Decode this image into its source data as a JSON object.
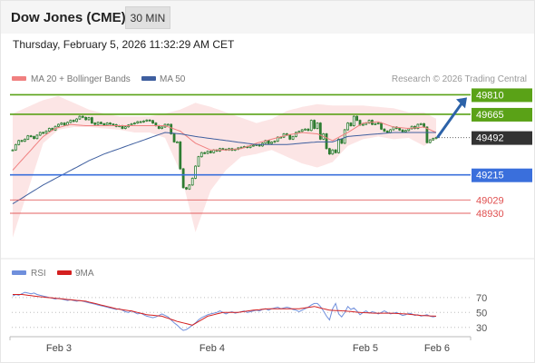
{
  "header": {
    "title": "Dow Jones (CME)",
    "interval": "30 MIN"
  },
  "timestamp": "Thursday, February 5, 2026 11:32:29 AM CET",
  "legend": {
    "ma20": "MA 20 + Bollinger Bands",
    "ma50": "MA 50",
    "credit": "Research © 2026 Trading Central",
    "rsi": "RSI",
    "ma9": "9MA"
  },
  "colors": {
    "candle": "#2e7d32",
    "ma20": "#f08080",
    "bollinger_fill": "#fbdcdc",
    "ma50": "#3f5f9f",
    "resistance": "#5aa217",
    "pivot": "#3a6fdc",
    "support": "#e05050",
    "last_price": "#333333",
    "rsi_line": "#6f8fdc",
    "rsi_ma": "#d42020"
  },
  "chart_data": [
    {
      "type": "candlestick",
      "title": "Dow Jones (CME)",
      "xlabel": "",
      "ylabel": "",
      "x_ticks": [
        "Feb 3",
        "Feb 4",
        "Feb 5",
        "Feb 6"
      ],
      "ylim": [
        48620,
        49860
      ],
      "grid": false,
      "legend_position": "top-left",
      "levels": [
        {
          "value": 49810,
          "label": "49810",
          "kind": "resistance"
        },
        {
          "value": 49665,
          "label": "49665",
          "kind": "resistance"
        },
        {
          "value": 49492,
          "label": "49492",
          "kind": "last"
        },
        {
          "value": 49215,
          "label": "49215",
          "kind": "pivot"
        },
        {
          "value": 49029,
          "label": "49029",
          "kind": "support"
        },
        {
          "value": 48930,
          "label": "48930",
          "kind": "support"
        }
      ],
      "close": [
        49400,
        49440,
        49470,
        49465,
        49480,
        49505,
        49500,
        49485,
        49510,
        49530,
        49525,
        49540,
        49560,
        49548,
        49575,
        49590,
        49600,
        49585,
        49605,
        49620,
        49612,
        49630,
        49650,
        49642,
        49625,
        49640,
        49600,
        49590,
        49605,
        49595,
        49585,
        49600,
        49592,
        49588,
        49575,
        49580,
        49560,
        49572,
        49585,
        49594,
        49600,
        49610,
        49608,
        49615,
        49622,
        49618,
        49600,
        49580,
        49560,
        49570,
        49590,
        49590,
        49520,
        49460,
        49460,
        49260,
        49120,
        49110,
        49140,
        49190,
        49280,
        49350,
        49380,
        49375,
        49390,
        49380,
        49400,
        49392,
        49410,
        49405,
        49400,
        49410,
        49398,
        49405,
        49415,
        49420,
        49425,
        49418,
        49430,
        49435,
        49440,
        49430,
        49450,
        49470,
        49448,
        49458,
        49465,
        49495,
        49495,
        49520,
        49510,
        49480,
        49500,
        49530,
        49538,
        49550,
        49555,
        49545,
        49620,
        49560,
        49600,
        49480,
        49520,
        49410,
        49370,
        49400,
        49380,
        49480,
        49450,
        49550,
        49600,
        49580,
        49650,
        49620,
        49585,
        49590,
        49600,
        49620,
        49590,
        49595,
        49600,
        49555,
        49540,
        49530,
        49550,
        49570,
        49560,
        49548,
        49535,
        49545,
        49558,
        49575,
        49560,
        49590,
        49595,
        49570,
        49455,
        49475,
        49485,
        49492
      ],
      "series": [
        {
          "name": "MA 20",
          "values": [
            49250,
            49275,
            49300,
            49325,
            49350,
            49375,
            49400,
            49425,
            49450,
            49475,
            49500,
            49515,
            49530,
            49545,
            49560,
            49566,
            49572,
            49578,
            49584,
            49590,
            49588,
            49586,
            49584,
            49582,
            49580,
            49580,
            49580,
            49580,
            49580,
            49580,
            49580,
            49580,
            49580,
            49580,
            49580,
            49580,
            49580,
            49580,
            49580,
            49580,
            49580,
            49580,
            49580,
            49580,
            49580,
            49580,
            49580,
            49580,
            49580,
            49580,
            49580,
            49572,
            49564,
            49556,
            49548,
            49540,
            49522,
            49504,
            49486,
            49468,
            49450,
            49440,
            49430,
            49420,
            49410,
            49400,
            49400,
            49400,
            49400,
            49400,
            49400,
            49402,
            49404,
            49406,
            49408,
            49410,
            49418,
            49426,
            49434,
            49442,
            49450,
            49456,
            49462,
            49468,
            49474,
            49480,
            49486,
            49492,
            49498,
            49504,
            49510,
            49514,
            49518,
            49522,
            49526,
            49530,
            49528,
            49526,
            49524,
            49522,
            49520,
            49510,
            49500,
            49490,
            49480,
            49470,
            49482,
            49494,
            49506,
            49518,
            49530,
            49544,
            49558,
            49572,
            49586,
            49600,
            49602,
            49604,
            49606,
            49608,
            49610,
            49602,
            49594,
            49586,
            49578,
            49570,
            49568,
            49566,
            49564,
            49562,
            49560,
            49562,
            49564,
            49566,
            49568,
            49570,
            49560,
            49550,
            49540,
            49530
          ]
        },
        {
          "name": "Bollinger upper",
          "values": [
            49670,
            49680,
            49690,
            49700,
            49710,
            49720,
            49730,
            49740,
            49750,
            49760,
            49770,
            49776,
            49782,
            49788,
            49794,
            49800,
            49790,
            49780,
            49770,
            49760,
            49750,
            49740,
            49730,
            49720,
            49710,
            49700,
            49694,
            49688,
            49682,
            49676,
            49670,
            49666,
            49662,
            49658,
            49654,
            49650,
            49650,
            49650,
            49650,
            49650,
            49650,
            49650,
            49650,
            49650,
            49650,
            49650,
            49654,
            49658,
            49662,
            49666,
            49670,
            49676,
            49682,
            49688,
            49694,
            49700,
            49710,
            49720,
            49730,
            49740,
            49750,
            49744,
            49738,
            49732,
            49726,
            49720,
            49712,
            49704,
            49696,
            49688,
            49680,
            49672,
            49664,
            49656,
            49648,
            49640,
            49632,
            49624,
            49616,
            49608,
            49600,
            49606,
            49612,
            49618,
            49624,
            49630,
            49642,
            49654,
            49666,
            49678,
            49690,
            49696,
            49702,
            49708,
            49714,
            49720,
            49724,
            49728,
            49732,
            49736,
            49740,
            49738,
            49736,
            49734,
            49732,
            49730,
            49730,
            49730,
            49730,
            49730,
            49730,
            49730,
            49730,
            49730,
            49730,
            49730,
            49728,
            49726,
            49724,
            49722,
            49720,
            49718,
            49716,
            49714,
            49712,
            49710,
            49704,
            49698,
            49692,
            49686,
            49680,
            49680,
            49680,
            49680,
            49680,
            49680,
            49668,
            49656,
            49644,
            49632
          ]
        },
        {
          "name": "Bollinger lower",
          "values": [
            48750,
            48820,
            48890,
            48960,
            49030,
            49100,
            49170,
            49240,
            49310,
            49380,
            49450,
            49470,
            49490,
            49510,
            49530,
            49550,
            49554,
            49558,
            49562,
            49566,
            49570,
            49570,
            49570,
            49570,
            49570,
            49570,
            49568,
            49566,
            49564,
            49562,
            49560,
            49558,
            49556,
            49554,
            49552,
            49550,
            49546,
            49542,
            49538,
            49534,
            49530,
            49530,
            49530,
            49530,
            49530,
            49530,
            49522,
            49514,
            49506,
            49498,
            49490,
            49440,
            49390,
            49340,
            49290,
            49240,
            49150,
            49060,
            48970,
            48880,
            48790,
            48852,
            48914,
            48976,
            49038,
            49100,
            49130,
            49160,
            49190,
            49220,
            49250,
            49270,
            49290,
            49310,
            49330,
            49350,
            49354,
            49358,
            49362,
            49366,
            49370,
            49376,
            49382,
            49388,
            49394,
            49400,
            49390,
            49380,
            49370,
            49360,
            49350,
            49340,
            49330,
            49320,
            49310,
            49300,
            49294,
            49288,
            49282,
            49276,
            49270,
            49278,
            49286,
            49294,
            49302,
            49310,
            49334,
            49358,
            49382,
            49406,
            49430,
            49440,
            49450,
            49460,
            49470,
            49480,
            49484,
            49488,
            49492,
            49496,
            49500,
            49496,
            49492,
            49488,
            49484,
            49480,
            49482,
            49484,
            49486,
            49488,
            49490,
            49478,
            49466,
            49454,
            49442,
            49430,
            49442,
            49454,
            49466,
            49478
          ]
        },
        {
          "name": "MA 50",
          "values": [
            49000,
            49014,
            49028,
            49042,
            49056,
            49070,
            49084,
            49098,
            49112,
            49126,
            49140,
            49152,
            49164,
            49176,
            49188,
            49200,
            49212,
            49224,
            49236,
            49248,
            49260,
            49272,
            49284,
            49296,
            49308,
            49320,
            49330,
            49340,
            49350,
            49360,
            49370,
            49378,
            49386,
            49394,
            49402,
            49410,
            49418,
            49426,
            49434,
            49442,
            49450,
            49458,
            49466,
            49474,
            49482,
            49490,
            49498,
            49506,
            49514,
            49522,
            49530,
            49528,
            49526,
            49524,
            49522,
            49520,
            49516,
            49512,
            49508,
            49504,
            49500,
            49497,
            49494,
            49491,
            49488,
            49485,
            49482,
            49479,
            49476,
            49473,
            49470,
            49467,
            49464,
            49461,
            49458,
            49455,
            49452,
            49449,
            49446,
            49443,
            49440,
            49440,
            49440,
            49440,
            49440,
            49440,
            49440,
            49440,
            49440,
            49440,
            49440,
            49442,
            49444,
            49446,
            49448,
            49450,
            49452,
            49454,
            49456,
            49458,
            49460,
            49460,
            49460,
            49460,
            49460,
            49460,
            49468,
            49476,
            49484,
            49492,
            49500,
            49502,
            49504,
            49506,
            49508,
            49510,
            49512,
            49514,
            49516,
            49518,
            49520,
            49522,
            49524,
            49526,
            49528,
            49530,
            49530,
            49530,
            49530,
            49530,
            49530,
            49530,
            49530,
            49530,
            49530,
            49530,
            49530,
            49530,
            49530,
            49530
          ]
        }
      ],
      "projection": {
        "from": 49492,
        "to": 49810
      }
    },
    {
      "type": "line",
      "title": "RSI",
      "xlabel": "",
      "ylabel": "",
      "ylim": [
        20,
        88
      ],
      "y_ticks": [
        70,
        50,
        30
      ],
      "grid": true,
      "legend_position": "top-left",
      "series": [
        {
          "name": "RSI",
          "values": [
            72,
            74,
            73,
            75,
            77,
            76,
            75,
            76,
            74,
            73,
            72,
            71,
            70,
            69,
            68,
            69,
            68,
            67,
            66,
            67,
            66,
            65,
            66,
            65,
            64,
            63,
            62,
            61,
            60,
            59,
            58,
            57,
            56,
            55,
            54,
            55,
            53,
            51,
            50,
            52,
            50,
            48,
            49,
            47,
            45,
            44,
            43,
            44,
            46,
            48,
            46,
            44,
            40,
            36,
            33,
            29,
            26,
            27,
            30,
            33,
            36,
            40,
            43,
            45,
            47,
            48,
            49,
            50,
            52,
            50,
            48,
            50,
            51,
            49,
            50,
            51,
            52,
            50,
            51,
            52,
            53,
            52,
            54,
            55,
            53,
            55,
            56,
            57,
            55,
            56,
            57,
            56,
            54,
            53,
            51,
            53,
            55,
            57,
            60,
            62,
            62,
            58,
            52,
            45,
            40,
            55,
            62,
            48,
            44,
            50,
            58,
            54,
            56,
            52,
            47,
            50,
            52,
            49,
            51,
            50,
            48,
            50,
            52,
            50,
            48,
            49,
            50,
            48,
            46,
            47,
            49,
            48,
            46,
            47,
            45,
            46,
            47,
            45,
            44,
            45
          ]
        },
        {
          "name": "9MA",
          "values": [
            74,
            74,
            74,
            74,
            73.5,
            73,
            72.5,
            72,
            71.5,
            71,
            70.6,
            70.2,
            69.8,
            69.4,
            69,
            68.6,
            68.2,
            67.8,
            67.4,
            67,
            66.6,
            66.2,
            65.8,
            65.4,
            65,
            64,
            63,
            62,
            61,
            60,
            59,
            58,
            57,
            56,
            55,
            54.4,
            53.8,
            53.2,
            52.6,
            52,
            51,
            50,
            49,
            48,
            47,
            46.6,
            46.2,
            45.8,
            45.4,
            45,
            43.6,
            42.2,
            40.8,
            39.4,
            38,
            37,
            36,
            35,
            34,
            33,
            35.4,
            37.8,
            40.2,
            42.6,
            45,
            46,
            47,
            48,
            49,
            50,
            50,
            50,
            50,
            50,
            50,
            50.6,
            51.2,
            51.8,
            52.4,
            53,
            53.4,
            53.8,
            54.2,
            54.6,
            55,
            55,
            55,
            55,
            55,
            55,
            55,
            55,
            55,
            55,
            55,
            55.6,
            56.2,
            56.8,
            57.4,
            58,
            57,
            56,
            55,
            54,
            53,
            52.8,
            52.6,
            52.4,
            52.2,
            52,
            51.6,
            51.2,
            50.8,
            50.4,
            50,
            49.8,
            49.6,
            49.4,
            49.2,
            49,
            49,
            49,
            49,
            49,
            49,
            48.8,
            48.6,
            48.4,
            48.2,
            48,
            47.6,
            47.2,
            46.8,
            46.4,
            46,
            45.8,
            45.6,
            45.4,
            45.2,
            45
          ]
        }
      ]
    }
  ]
}
